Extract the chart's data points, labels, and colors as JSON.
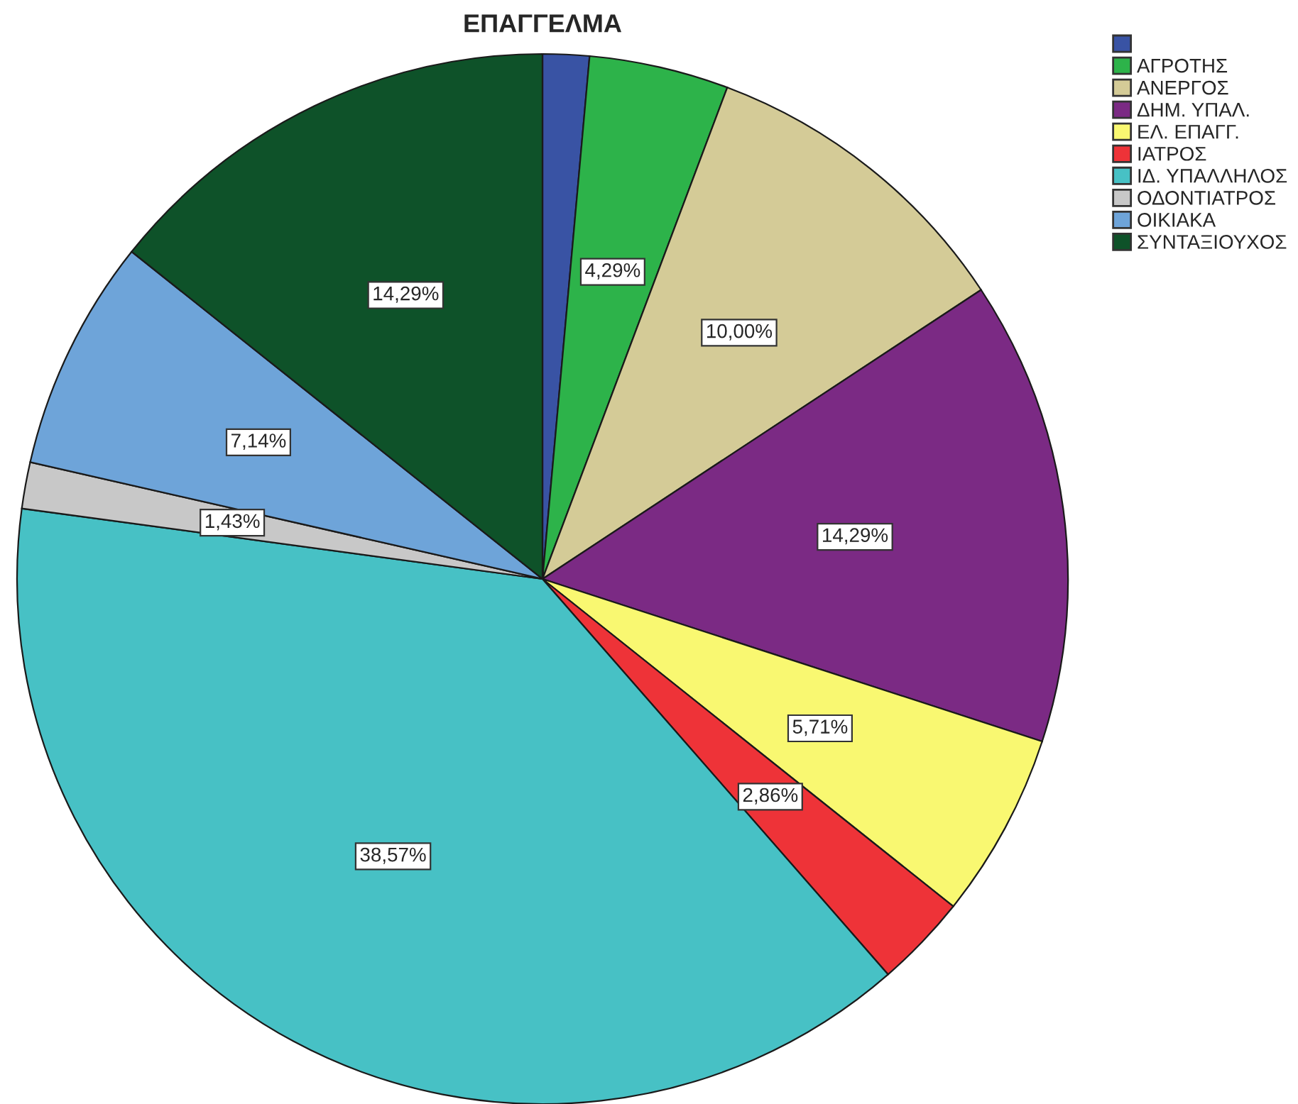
{
  "chart_data": {
    "type": "pie",
    "title": "ΕΠΑΓΓΕΛΜΑ",
    "categories": [
      null,
      "ΑΓΡΟΤΗΣ",
      "ΑΝΕΡΓΟΣ",
      "ΔΗΜ. ΥΠΑΛ.",
      "ΕΛ. ΕΠΑΓΓ.",
      "ΙΑΤΡΟΣ",
      "ΙΔ. ΥΠΑΛΛΗΛΟΣ",
      "ΟΔΟΝΤΙΑΤΡΟΣ",
      "ΟΙΚΙΑΚΑ",
      "ΣΥΝΤΑΞΙΟΥΧΟΣ"
    ],
    "values": [
      1.43,
      4.29,
      10.0,
      14.29,
      5.71,
      2.86,
      38.57,
      1.43,
      7.14,
      14.29
    ],
    "value_labels": [
      null,
      "4,29%",
      "10,00%",
      "14,29%",
      "5,71%",
      "2,86%",
      "38,57%",
      "1,43%",
      "7,14%",
      "14,29%"
    ],
    "colors": [
      "#3953a4",
      "#2db34a",
      "#d4cb97",
      "#7b2a84",
      "#f9f871",
      "#ee3338",
      "#47c1c5",
      "#c8c8c8",
      "#6ea4d9",
      "#0e5229"
    ],
    "legend": "top right"
  }
}
